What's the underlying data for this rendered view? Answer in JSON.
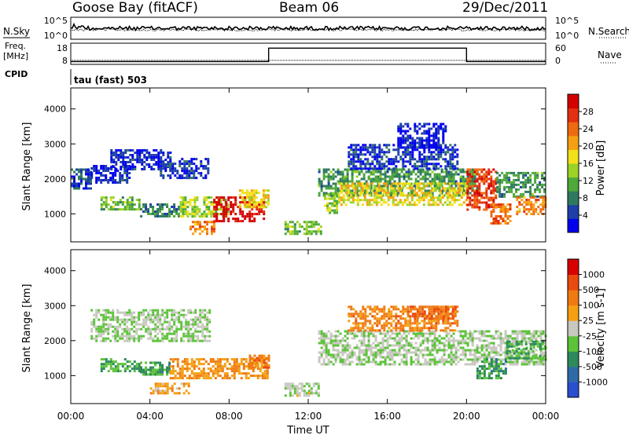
{
  "header": {
    "station": "Goose Bay (fitACF)",
    "beam": "Beam 06",
    "date": "29/Dec/2011"
  },
  "strip_labels": {
    "nsky": "N.Sky",
    "nsearch": "N.Search",
    "freq": "Freq.",
    "freq_unit": "[MHz]",
    "nave": "Nave",
    "cpid": "CPID",
    "cpid_value": "tau (fast) 503"
  },
  "chart_data": [
    {
      "type": "line",
      "panel": "noise",
      "series": [
        {
          "name": "N.Sky",
          "style": "solid"
        },
        {
          "name": "N.Search",
          "style": "dotted"
        }
      ],
      "left_ticks": [
        "10^5",
        "10^0"
      ],
      "right_ticks": [
        "10^5",
        "10^0"
      ]
    },
    {
      "type": "line",
      "panel": "frequency",
      "left_ticks": [
        "18",
        "8"
      ],
      "right_ticks": [
        "60",
        "0"
      ],
      "freq_segments": [
        {
          "start_hr": 0,
          "end_hr": 24,
          "mhz": 9.9
        }
      ],
      "nave_segments": [
        {
          "start_hr": 0,
          "end_hr": 10,
          "value": 8
        },
        {
          "start_hr": 10,
          "end_hr": 20,
          "value": 46
        },
        {
          "start_hr": 20,
          "end_hr": 24,
          "value": 8
        }
      ]
    },
    {
      "type": "heatmap",
      "panel": "power",
      "ylabel": "Slant Range [km]",
      "ylim": [
        200,
        4600
      ],
      "y_ticks": [
        1000,
        2000,
        3000,
        4000
      ],
      "colorbar_label": "Power [dB]",
      "colorbar_ticks": [
        "28",
        "24",
        "20",
        "16",
        "12",
        "8",
        "4"
      ],
      "colorbar_colors": [
        "#0000ee",
        "#1d3fa8",
        "#2f7a5e",
        "#4ea83a",
        "#9cd226",
        "#f2e01a",
        "#f5a012",
        "#ef6a10",
        "#e23010",
        "#d40000"
      ],
      "echo_regions": [
        {
          "t0": 0.0,
          "t1": 1.0,
          "r0": 1700,
          "r1": 2300,
          "level": 0.15
        },
        {
          "t0": 1.0,
          "t1": 3.0,
          "r0": 1900,
          "r1": 2400,
          "level": 0.1
        },
        {
          "t0": 2.0,
          "t1": 5.0,
          "r0": 2300,
          "r1": 2850,
          "level": 0.1
        },
        {
          "t0": 4.5,
          "t1": 7.0,
          "r0": 2000,
          "r1": 2600,
          "level": 0.12
        },
        {
          "t0": 1.5,
          "t1": 3.5,
          "r0": 1100,
          "r1": 1500,
          "level": 0.4
        },
        {
          "t0": 3.5,
          "t1": 5.5,
          "r0": 900,
          "r1": 1300,
          "level": 0.25
        },
        {
          "t0": 5.5,
          "t1": 8.0,
          "r0": 900,
          "r1": 1500,
          "level": 0.45
        },
        {
          "t0": 6.0,
          "t1": 7.2,
          "r0": 400,
          "r1": 800,
          "level": 0.7
        },
        {
          "t0": 7.2,
          "t1": 9.8,
          "r0": 800,
          "r1": 1500,
          "level": 0.95
        },
        {
          "t0": 8.5,
          "t1": 10.0,
          "r0": 1200,
          "r1": 1700,
          "level": 0.55
        },
        {
          "t0": 10.8,
          "t1": 12.6,
          "r0": 400,
          "r1": 800,
          "level": 0.4
        },
        {
          "t0": 12.8,
          "t1": 13.5,
          "r0": 1000,
          "r1": 1600,
          "level": 0.45
        },
        {
          "t0": 12.5,
          "t1": 20.5,
          "r0": 1500,
          "r1": 2300,
          "level": 0.3
        },
        {
          "t0": 13.5,
          "t1": 20.0,
          "r0": 1250,
          "r1": 1900,
          "level": 0.55
        },
        {
          "t0": 14.0,
          "t1": 19.5,
          "r0": 2300,
          "r1": 3000,
          "level": 0.12
        },
        {
          "t0": 16.5,
          "t1": 19.0,
          "r0": 2900,
          "r1": 3600,
          "level": 0.08
        },
        {
          "t0": 20.0,
          "t1": 21.5,
          "r0": 1100,
          "r1": 2300,
          "level": 0.85
        },
        {
          "t0": 21.2,
          "t1": 22.2,
          "r0": 700,
          "r1": 1300,
          "level": 0.75
        },
        {
          "t0": 21.5,
          "t1": 24.0,
          "r0": 1500,
          "r1": 2200,
          "level": 0.3
        },
        {
          "t0": 22.5,
          "t1": 24.0,
          "r0": 1000,
          "r1": 1500,
          "level": 0.7
        }
      ]
    },
    {
      "type": "heatmap",
      "panel": "velocity",
      "ylabel": "Slant Range [km]",
      "ylim": [
        200,
        4600
      ],
      "y_ticks": [
        1000,
        2000,
        3000,
        4000
      ],
      "xlabel": "Time UT",
      "x_ticks": [
        "00:00",
        "04:00",
        "08:00",
        "12:00",
        "16:00",
        "20:00",
        "00:00"
      ],
      "colorbar_label": "Velocity [m s-1]",
      "colorbar_ticks": [
        "1000",
        "500",
        "100",
        "25",
        "-25",
        "-100",
        "-500",
        "-1000"
      ],
      "colorbar_colors": [
        "#2a4fd0",
        "#2e6aa8",
        "#2d8a5a",
        "#5cc23a",
        "#c8c8c0",
        "#f5a012",
        "#ef7a12",
        "#e94a10",
        "#d80000"
      ],
      "echo_regions": [
        {
          "t0": 1.0,
          "t1": 7.0,
          "r0": 2000,
          "r1": 2900,
          "level": 0.45
        },
        {
          "t0": 1.5,
          "t1": 3.5,
          "r0": 1100,
          "r1": 1500,
          "level": 0.35
        },
        {
          "t0": 3.5,
          "t1": 5.0,
          "r0": 1000,
          "r1": 1400,
          "level": 0.3
        },
        {
          "t0": 4.0,
          "t1": 6.0,
          "r0": 500,
          "r1": 800,
          "level": 0.62
        },
        {
          "t0": 5.0,
          "t1": 10.0,
          "r0": 900,
          "r1": 1500,
          "level": 0.66
        },
        {
          "t0": 9.0,
          "t1": 10.0,
          "r0": 1200,
          "r1": 1600,
          "level": 0.72
        },
        {
          "t0": 10.8,
          "t1": 12.5,
          "r0": 450,
          "r1": 800,
          "level": 0.48
        },
        {
          "t0": 12.5,
          "t1": 24.0,
          "r0": 1300,
          "r1": 2300,
          "level": 0.46
        },
        {
          "t0": 14.0,
          "t1": 19.5,
          "r0": 2300,
          "r1": 3000,
          "level": 0.7
        },
        {
          "t0": 17.0,
          "t1": 19.5,
          "r0": 2600,
          "r1": 3000,
          "level": 0.78
        },
        {
          "t0": 20.5,
          "t1": 22.0,
          "r0": 900,
          "r1": 1500,
          "level": 0.3
        },
        {
          "t0": 22.0,
          "t1": 24.0,
          "r0": 1500,
          "r1": 2000,
          "level": 0.35
        }
      ]
    }
  ]
}
